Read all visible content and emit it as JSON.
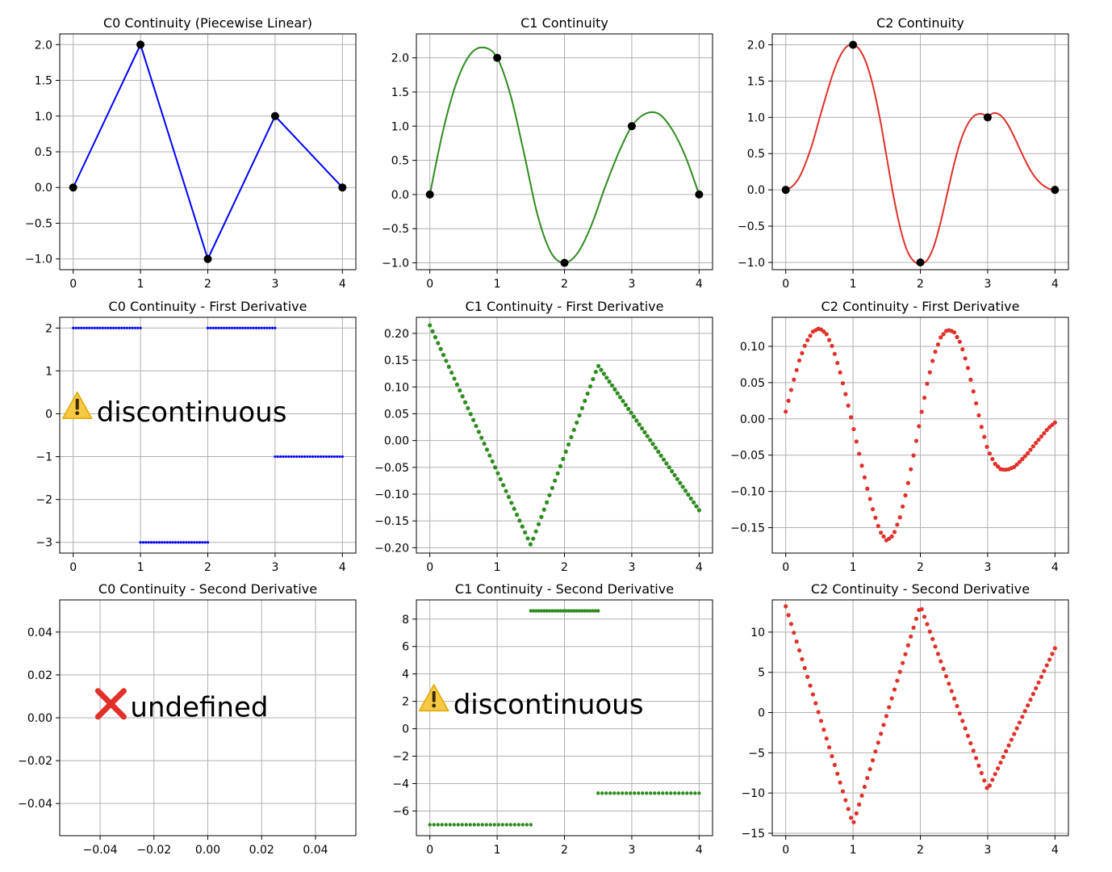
{
  "chart_data": [
    {
      "id": "c0",
      "type": "line",
      "title": "C0 Continuity (Piecewise Linear)",
      "xlabel": "",
      "ylabel": "",
      "color": "#0000ff",
      "marker_color": "#000000",
      "xlim": [
        -0.2,
        4.2
      ],
      "ylim": [
        -1.15,
        2.15
      ],
      "xticks": [
        0,
        1,
        2,
        3,
        4
      ],
      "xtick_labels": [
        "0",
        "1",
        "2",
        "3",
        "4"
      ],
      "yticks": [
        -1.0,
        -0.5,
        0.0,
        0.5,
        1.0,
        1.5,
        2.0
      ],
      "ytick_labels": [
        "−1.0",
        "−0.5",
        "0.0",
        "0.5",
        "1.0",
        "1.5",
        "2.0"
      ],
      "grid": true,
      "line_x": [
        0,
        1,
        2,
        3,
        4
      ],
      "line_y": [
        0,
        2,
        -1,
        1,
        0
      ],
      "points_x": [
        0,
        1,
        2,
        3,
        4
      ],
      "points_y": [
        0,
        2,
        -1,
        1,
        0
      ]
    },
    {
      "id": "c1",
      "type": "line",
      "title": "C1 Continuity",
      "xlabel": "",
      "ylabel": "",
      "color": "#2e8b1e",
      "marker_color": "#000000",
      "xlim": [
        -0.2,
        4.2
      ],
      "ylim": [
        -1.1,
        2.35
      ],
      "xticks": [
        0,
        1,
        2,
        3,
        4
      ],
      "xtick_labels": [
        "0",
        "1",
        "2",
        "3",
        "4"
      ],
      "yticks": [
        -1.0,
        -0.5,
        0.0,
        0.5,
        1.0,
        1.5,
        2.0
      ],
      "ytick_labels": [
        "−1.0",
        "−0.5",
        "0.0",
        "0.5",
        "1.0",
        "1.5",
        "2.0"
      ],
      "grid": true,
      "line_x": [
        0,
        0.2,
        0.4,
        0.6,
        0.8,
        1.0,
        1.2,
        1.4,
        1.6,
        1.8,
        2.0,
        2.2,
        2.4,
        2.6,
        2.8,
        3.0,
        3.2,
        3.4,
        3.6,
        3.8,
        4.0
      ],
      "line_y": [
        0,
        0.95,
        1.65,
        2.05,
        2.15,
        2.0,
        1.45,
        0.6,
        -0.3,
        -0.85,
        -1.0,
        -0.85,
        -0.45,
        0.1,
        0.6,
        1.0,
        1.18,
        1.18,
        0.95,
        0.55,
        0.0
      ],
      "points_x": [
        0,
        1,
        2,
        3,
        4
      ],
      "points_y": [
        0,
        2,
        -1,
        1,
        0
      ]
    },
    {
      "id": "c2",
      "type": "line",
      "title": "C2 Continuity",
      "xlabel": "",
      "ylabel": "",
      "color": "#e0302a",
      "marker_color": "#000000",
      "xlim": [
        -0.2,
        4.2
      ],
      "ylim": [
        -1.1,
        2.15
      ],
      "xticks": [
        0,
        1,
        2,
        3,
        4
      ],
      "xtick_labels": [
        "0",
        "1",
        "2",
        "3",
        "4"
      ],
      "yticks": [
        -1.0,
        -0.5,
        0.0,
        0.5,
        1.0,
        1.5,
        2.0
      ],
      "ytick_labels": [
        "−1.0",
        "−0.5",
        "0.0",
        "0.5",
        "1.0",
        "1.5",
        "2.0"
      ],
      "grid": true,
      "line_x": [
        0,
        0.1,
        0.2,
        0.3,
        0.4,
        0.5,
        0.6,
        0.7,
        0.8,
        0.9,
        1.0,
        1.1,
        1.2,
        1.3,
        1.4,
        1.5,
        1.6,
        1.7,
        1.8,
        1.9,
        2.0,
        2.1,
        2.2,
        2.3,
        2.4,
        2.5,
        2.6,
        2.7,
        2.8,
        2.9,
        3.0,
        3.1,
        3.2,
        3.3,
        3.4,
        3.5,
        3.6,
        3.7,
        3.8,
        3.9,
        4.0
      ],
      "line_y": [
        0,
        0.05,
        0.17,
        0.38,
        0.65,
        0.98,
        1.3,
        1.6,
        1.83,
        1.97,
        2.0,
        1.93,
        1.74,
        1.42,
        0.98,
        0.45,
        -0.08,
        -0.52,
        -0.83,
        -0.98,
        -1.02,
        -0.97,
        -0.78,
        -0.45,
        -0.05,
        0.35,
        0.68,
        0.9,
        1.02,
        1.05,
        1.02,
        1.06,
        1.02,
        0.9,
        0.72,
        0.52,
        0.33,
        0.18,
        0.08,
        0.02,
        0.0
      ],
      "points_x": [
        0,
        1,
        2,
        3,
        4
      ],
      "points_y": [
        0,
        2,
        -1,
        1,
        0
      ]
    },
    {
      "id": "c0d1",
      "type": "scatter",
      "title": "C0 Continuity - First Derivative",
      "xlabel": "",
      "ylabel": "",
      "color": "#0000ff",
      "xlim": [
        -0.2,
        4.2
      ],
      "ylim": [
        -3.25,
        2.25
      ],
      "xticks": [
        0,
        1,
        2,
        3,
        4
      ],
      "xtick_labels": [
        "0",
        "1",
        "2",
        "3",
        "4"
      ],
      "yticks": [
        -3,
        -2,
        -1,
        0,
        1,
        2
      ],
      "ytick_labels": [
        "−3",
        "−2",
        "−1",
        "0",
        "1",
        "2"
      ],
      "grid": true,
      "marker_size": 1.6,
      "segments": [
        {
          "x_start": 0,
          "x_end": 1,
          "y": 2
        },
        {
          "x_start": 1,
          "x_end": 2,
          "y": -3
        },
        {
          "x_start": 2,
          "x_end": 3,
          "y": 2
        },
        {
          "x_start": 3,
          "x_end": 4,
          "y": -1
        }
      ],
      "annotation": {
        "icon": "warning-icon",
        "text": "discontinuous",
        "x": 0.3,
        "y": 0.05
      }
    },
    {
      "id": "c1d1",
      "type": "scatter",
      "title": "C1 Continuity - First Derivative",
      "xlabel": "",
      "ylabel": "",
      "color": "#2e8b1e",
      "xlim": [
        -0.2,
        4.2
      ],
      "ylim": [
        -0.21,
        0.23
      ],
      "xticks": [
        0,
        1,
        2,
        3,
        4
      ],
      "xtick_labels": [
        "0",
        "1",
        "2",
        "3",
        "4"
      ],
      "yticks": [
        -0.2,
        -0.15,
        -0.1,
        -0.05,
        0.0,
        0.05,
        0.1,
        0.15,
        0.2
      ],
      "ytick_labels": [
        "−0.20",
        "−0.15",
        "−0.10",
        "−0.05",
        "0.00",
        "0.05",
        "0.10",
        "0.15",
        "0.20"
      ],
      "grid": true,
      "marker_size": 2.6,
      "knots_x": [
        0,
        1.5,
        2.5,
        4.0
      ],
      "knots_y": [
        0.215,
        -0.195,
        0.14,
        -0.13
      ],
      "n_points": 100
    },
    {
      "id": "c2d1",
      "type": "scatter",
      "title": "C2 Continuity - First Derivative",
      "xlabel": "",
      "ylabel": "",
      "color": "#e0302a",
      "xlim": [
        -0.2,
        4.2
      ],
      "ylim": [
        -0.185,
        0.14
      ],
      "xticks": [
        0,
        1,
        2,
        3,
        4
      ],
      "xtick_labels": [
        "0",
        "1",
        "2",
        "3",
        "4"
      ],
      "yticks": [
        -0.15,
        -0.1,
        -0.05,
        0.0,
        0.05,
        0.1
      ],
      "ytick_labels": [
        "−0.15",
        "−0.10",
        "−0.05",
        "0.00",
        "0.05",
        "0.10"
      ],
      "grid": true,
      "marker_size": 2.6,
      "curve_x": [
        0,
        0.1,
        0.2,
        0.3,
        0.4,
        0.5,
        0.6,
        0.7,
        0.8,
        0.9,
        1.0,
        1.1,
        1.2,
        1.3,
        1.4,
        1.5,
        1.6,
        1.7,
        1.8,
        1.9,
        2.0,
        2.1,
        2.2,
        2.3,
        2.4,
        2.5,
        2.6,
        2.7,
        2.8,
        2.9,
        3.0,
        3.1,
        3.2,
        3.3,
        3.4,
        3.5,
        3.6,
        3.7,
        3.8,
        3.9,
        4.0
      ],
      "curve_y": [
        0.01,
        0.047,
        0.08,
        0.105,
        0.12,
        0.125,
        0.118,
        0.098,
        0.067,
        0.03,
        -0.01,
        -0.052,
        -0.092,
        -0.127,
        -0.155,
        -0.168,
        -0.16,
        -0.135,
        -0.097,
        -0.05,
        0.0,
        0.048,
        0.087,
        0.112,
        0.123,
        0.12,
        0.104,
        0.073,
        0.033,
        -0.008,
        -0.042,
        -0.061,
        -0.07,
        -0.07,
        -0.066,
        -0.057,
        -0.047,
        -0.035,
        -0.024,
        -0.013,
        -0.005
      ],
      "n_points": 100
    },
    {
      "id": "c0d2",
      "type": "scatter",
      "title": "C0 Continuity - Second Derivative",
      "xlabel": "",
      "ylabel": "",
      "color": "#000000",
      "xlim": [
        -0.055,
        0.055
      ],
      "ylim": [
        -0.055,
        0.055
      ],
      "xticks": [
        -0.04,
        -0.02,
        0.0,
        0.02,
        0.04
      ],
      "xtick_labels": [
        "−0.04",
        "−0.02",
        "0.00",
        "0.02",
        "0.04"
      ],
      "yticks": [
        -0.04,
        -0.02,
        0.0,
        0.02,
        0.04
      ],
      "ytick_labels": [
        "−0.04",
        "−0.02",
        "0.00",
        "0.02",
        "0.04"
      ],
      "grid": true,
      "annotation": {
        "icon": "cross-icon",
        "text": "undefined",
        "x": -0.03,
        "y": 0.005
      }
    },
    {
      "id": "c1d2",
      "type": "scatter",
      "title": "C1 Continuity - Second Derivative",
      "xlabel": "",
      "ylabel": "",
      "color": "#2e8b1e",
      "xlim": [
        -0.2,
        4.2
      ],
      "ylim": [
        -7.8,
        9.4
      ],
      "xticks": [
        0,
        1,
        2,
        3,
        4
      ],
      "xtick_labels": [
        "0",
        "1",
        "2",
        "3",
        "4"
      ],
      "yticks": [
        -6,
        -4,
        -2,
        0,
        2,
        4,
        6,
        8
      ],
      "ytick_labels": [
        "−6",
        "−4",
        "−2",
        "0",
        "2",
        "4",
        "6",
        "8"
      ],
      "grid": true,
      "marker_size": 2.2,
      "segments": [
        {
          "x_start": 0,
          "x_end": 1.5,
          "y": -7.0
        },
        {
          "x_start": 1.5,
          "x_end": 2.5,
          "y": 8.6
        },
        {
          "x_start": 2.5,
          "x_end": 4.0,
          "y": -4.7
        }
      ],
      "annotation": {
        "icon": "warning-icon",
        "text": "discontinuous",
        "x": 0.3,
        "y": 1.8
      }
    },
    {
      "id": "c2d2",
      "type": "scatter",
      "title": "C2 Continuity - Second Derivative",
      "xlabel": "",
      "ylabel": "",
      "color": "#e0302a",
      "xlim": [
        -0.2,
        4.2
      ],
      "ylim": [
        -15.3,
        14.0
      ],
      "xticks": [
        0,
        1,
        2,
        3,
        4
      ],
      "xtick_labels": [
        "0",
        "1",
        "2",
        "3",
        "4"
      ],
      "yticks": [
        -15,
        -10,
        -5,
        0,
        5,
        10
      ],
      "ytick_labels": [
        "−15",
        "−10",
        "−5",
        "0",
        "5",
        "10"
      ],
      "grid": true,
      "marker_size": 2.6,
      "knots_x": [
        0,
        1,
        2,
        3,
        4
      ],
      "knots_y": [
        13.2,
        -13.9,
        13.3,
        -9.6,
        8.0
      ],
      "n_points": 100
    }
  ]
}
